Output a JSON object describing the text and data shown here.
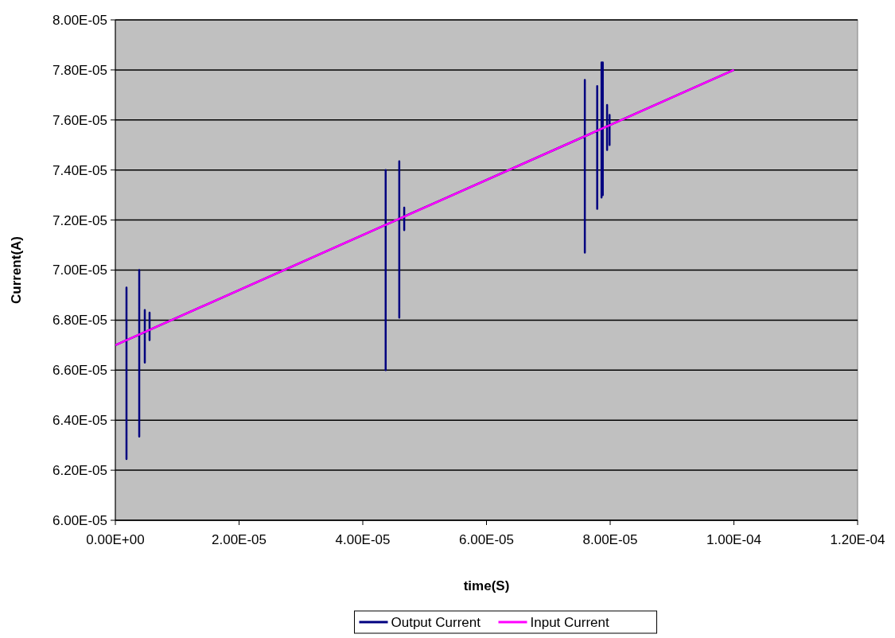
{
  "chart_data": {
    "type": "line",
    "xlabel": "time(S)",
    "ylabel": "Current(A)",
    "xlim": [
      0,
      0.00012
    ],
    "ylim": [
      6e-05,
      8e-05
    ],
    "xticks": [
      {
        "value": 0,
        "label": "0.00E+00"
      },
      {
        "value": 2e-05,
        "label": "2.00E-05"
      },
      {
        "value": 4e-05,
        "label": "4.00E-05"
      },
      {
        "value": 6e-05,
        "label": "6.00E-05"
      },
      {
        "value": 8e-05,
        "label": "8.00E-05"
      },
      {
        "value": 0.0001,
        "label": "1.00E-04"
      },
      {
        "value": 0.00012,
        "label": "1.20E-04"
      }
    ],
    "yticks": [
      {
        "value": 6e-05,
        "label": "6.00E-05"
      },
      {
        "value": 6.2e-05,
        "label": "6.20E-05"
      },
      {
        "value": 6.4e-05,
        "label": "6.40E-05"
      },
      {
        "value": 6.6e-05,
        "label": "6.60E-05"
      },
      {
        "value": 6.8e-05,
        "label": "6.80E-05"
      },
      {
        "value": 7e-05,
        "label": "7.00E-05"
      },
      {
        "value": 7.2e-05,
        "label": "7.20E-05"
      },
      {
        "value": 7.4e-05,
        "label": "7.40E-05"
      },
      {
        "value": 7.6e-05,
        "label": "7.60E-05"
      },
      {
        "value": 7.8e-05,
        "label": "7.80E-05"
      },
      {
        "value": 8e-05,
        "label": "8.00E-05"
      }
    ],
    "grid": "y",
    "legend": "bottom",
    "marker": "none",
    "line_style": "solid",
    "series": [
      {
        "name": "Output Current",
        "color": "#000080",
        "x": [
          0,
          1.8e-06,
          1.8e-06,
          1.8e-06,
          1.8e-06,
          3.86e-06,
          3.86e-06,
          3.86e-06,
          3.86e-06,
          4.76e-06,
          4.76e-06,
          4.76e-06,
          4.76e-06,
          5.53e-06,
          5.53e-06,
          5.53e-06,
          5.53e-06,
          4.37e-05,
          4.37e-05,
          4.37e-05,
          4.37e-05,
          4.59e-05,
          4.59e-05,
          4.59e-05,
          4.59e-05,
          4.67e-05,
          4.67e-05,
          4.67e-05,
          4.67e-05,
          7.59e-05,
          7.59e-05,
          7.59e-05,
          7.59e-05,
          7.79e-05,
          7.79e-05,
          7.79e-05,
          7.79e-05,
          7.86e-05,
          7.86e-05,
          7.86e-05,
          7.86e-05,
          7.88e-05,
          7.88e-05,
          7.88e-05,
          7.88e-05,
          7.95e-05,
          7.95e-05,
          7.95e-05,
          7.95e-05,
          7.99e-05,
          7.99e-05,
          7.99e-05,
          7.99e-05,
          0.0001
        ],
        "values": [
          6.7e-05,
          6.72e-05,
          6.93e-05,
          6.245e-05,
          6.72e-05,
          6.742e-05,
          7e-05,
          6.335e-05,
          6.742e-05,
          6.752e-05,
          6.84e-05,
          6.63e-05,
          6.752e-05,
          6.761e-05,
          6.83e-05,
          6.72e-05,
          6.761e-05,
          7.181e-05,
          7.4e-05,
          6.6e-05,
          7.181e-05,
          7.205e-05,
          7.435e-05,
          6.81e-05,
          7.205e-05,
          7.214e-05,
          7.25e-05,
          7.16e-05,
          7.214e-05,
          7.535e-05,
          7.76e-05,
          7.07e-05,
          7.535e-05,
          7.557e-05,
          7.735e-05,
          7.245e-05,
          7.557e-05,
          7.565e-05,
          7.83e-05,
          7.29e-05,
          7.565e-05,
          7.567e-05,
          7.83e-05,
          7.3e-05,
          7.567e-05,
          7.575e-05,
          7.66e-05,
          7.48e-05,
          7.575e-05,
          7.579e-05,
          7.62e-05,
          7.5e-05,
          7.579e-05,
          7.8e-05
        ]
      },
      {
        "name": "Input Current",
        "color": "#ff00ff",
        "x": [
          0,
          0.0001
        ],
        "values": [
          6.7e-05,
          7.8e-05
        ]
      }
    ]
  }
}
